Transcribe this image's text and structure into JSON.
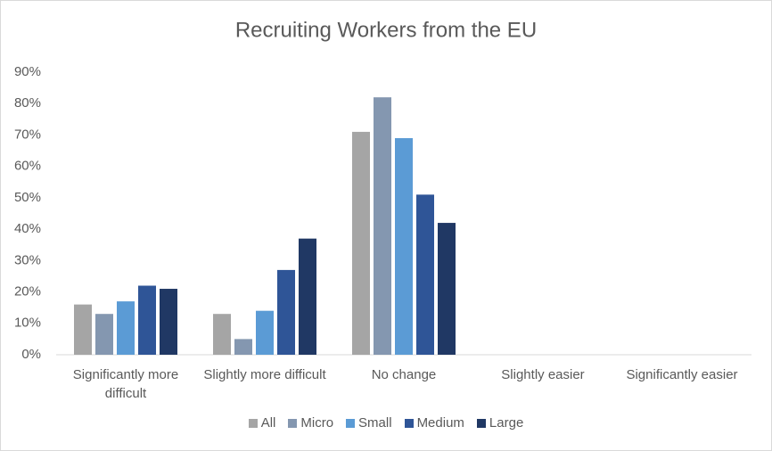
{
  "chart_data": {
    "type": "bar",
    "title": "Recruiting Workers from the EU",
    "categories": [
      "Significantly more difficult",
      "Slightly more difficult",
      "No change",
      "Slightly easier",
      "Significantly easier"
    ],
    "series": [
      {
        "name": "All",
        "color": "#a5a5a5",
        "values": [
          16,
          13,
          71,
          0,
          0
        ]
      },
      {
        "name": "Micro",
        "color": "#8497b0",
        "values": [
          13,
          5,
          82,
          0,
          0
        ]
      },
      {
        "name": "Small",
        "color": "#5b9bd5",
        "values": [
          17,
          14,
          69,
          0,
          0
        ]
      },
      {
        "name": "Medium",
        "color": "#2f5597",
        "values": [
          22,
          27,
          51,
          0,
          0
        ]
      },
      {
        "name": "Large",
        "color": "#203864",
        "values": [
          21,
          37,
          42,
          0,
          0
        ]
      }
    ],
    "ylim": [
      0,
      90
    ],
    "yticks": [
      {
        "value": 0,
        "label": "0%"
      },
      {
        "value": 10,
        "label": "10%"
      },
      {
        "value": 20,
        "label": "20%"
      },
      {
        "value": 30,
        "label": "30%"
      },
      {
        "value": 40,
        "label": "40%"
      },
      {
        "value": 50,
        "label": "50%"
      },
      {
        "value": 60,
        "label": "60%"
      },
      {
        "value": 70,
        "label": "70%"
      },
      {
        "value": 80,
        "label": "80%"
      },
      {
        "value": 90,
        "label": "90%"
      }
    ],
    "grid": false,
    "legend": "bottom"
  }
}
